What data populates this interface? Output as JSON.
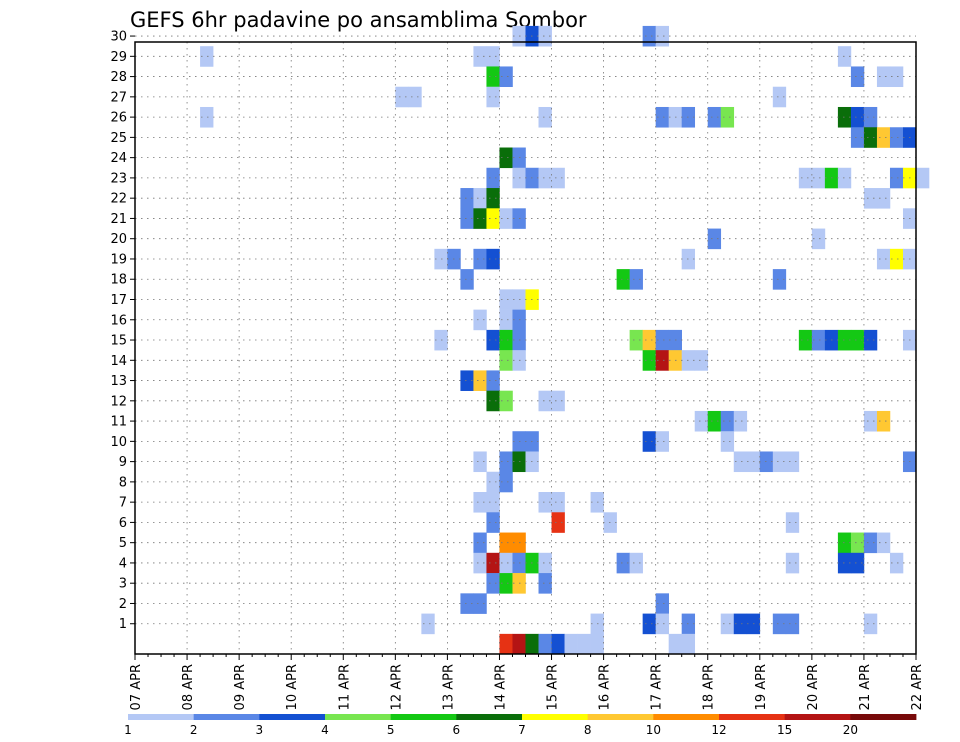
{
  "chart_data": {
    "type": "heatmap",
    "title": "GEFS 6hr padavine po ansamblima Sombor",
    "xlabel": "",
    "ylabel": "",
    "x_tick_labels": [
      "07 APR",
      "08 APR",
      "09 APR",
      "10 APR",
      "11 APR",
      "12 APR",
      "13 APR",
      "14 APR",
      "15 APR",
      "16 APR",
      "17 APR",
      "18 APR",
      "19 APR",
      "20 APR",
      "21 APR",
      "22 APR"
    ],
    "x_range_days": [
      0,
      15
    ],
    "y_range": [
      0,
      30
    ],
    "y_ticks": [
      1,
      2,
      3,
      4,
      5,
      6,
      7,
      8,
      9,
      10,
      11,
      12,
      13,
      14,
      15,
      16,
      17,
      18,
      19,
      20,
      21,
      22,
      23,
      24,
      25,
      26,
      27,
      28,
      29,
      30
    ],
    "grid": true,
    "legend_placement": "bottom",
    "legend": {
      "labels": [
        "1",
        "2",
        "3",
        "4",
        "5",
        "6",
        "7",
        "8",
        "10",
        "12",
        "15",
        "20"
      ],
      "colors": [
        "#b4c8f5",
        "#5a87e6",
        "#1450d2",
        "#78e650",
        "#14c814",
        "#0a6e0a",
        "#ffff00",
        "#ffc832",
        "#ff8c00",
        "#e63214",
        "#b41414",
        "#780a0a"
      ]
    },
    "colors_by_level": {
      "1": "#b4c8f5",
      "2": "#5a87e6",
      "3": "#1450d2",
      "4": "#78e650",
      "5": "#14c814",
      "6": "#0a6e0a",
      "7": "#ffff00",
      "8": "#ffc832",
      "9": "#ff8c00",
      "10": "#e63214",
      "11": "#b41414",
      "12": "#780a0a"
    },
    "cells_note": "each cell: [day offset from 07 APR in quarter-day steps (6h), ensemble member, color level]",
    "cells": [
      [
        7.25,
        30,
        1
      ],
      [
        7.5,
        30,
        1
      ],
      [
        7.5,
        30,
        3
      ],
      [
        7.75,
        30,
        1
      ],
      [
        7.75,
        30,
        1
      ],
      [
        9.75,
        30,
        2
      ],
      [
        10.0,
        30,
        1
      ],
      [
        1.25,
        29,
        1
      ],
      [
        6.5,
        29,
        1
      ],
      [
        6.75,
        29,
        1
      ],
      [
        13.5,
        29,
        1
      ],
      [
        6.75,
        28,
        5
      ],
      [
        7.0,
        28,
        2
      ],
      [
        13.75,
        28,
        2
      ],
      [
        14.25,
        28,
        1
      ],
      [
        14.5,
        28,
        1
      ],
      [
        5.0,
        27,
        1
      ],
      [
        5.25,
        27,
        1
      ],
      [
        6.75,
        27,
        1
      ],
      [
        12.25,
        27,
        1
      ],
      [
        1.25,
        26,
        1
      ],
      [
        7.75,
        26,
        1
      ],
      [
        10.0,
        26,
        2
      ],
      [
        10.25,
        26,
        1
      ],
      [
        10.5,
        26,
        2
      ],
      [
        11.0,
        26,
        2
      ],
      [
        11.25,
        26,
        4
      ],
      [
        13.5,
        26,
        6
      ],
      [
        13.75,
        26,
        3
      ],
      [
        14.0,
        26,
        2
      ],
      [
        13.75,
        25,
        2
      ],
      [
        14.0,
        25,
        6
      ],
      [
        14.25,
        25,
        8
      ],
      [
        14.5,
        25,
        2
      ],
      [
        14.75,
        25,
        3
      ],
      [
        7.0,
        24,
        6
      ],
      [
        7.25,
        24,
        2
      ],
      [
        6.75,
        23,
        2
      ],
      [
        7.25,
        23,
        1
      ],
      [
        7.5,
        23,
        2
      ],
      [
        7.75,
        23,
        1
      ],
      [
        8.0,
        23,
        1
      ],
      [
        12.75,
        23,
        1
      ],
      [
        13.0,
        23,
        1
      ],
      [
        13.25,
        23,
        5
      ],
      [
        13.5,
        23,
        1
      ],
      [
        14.5,
        23,
        2
      ],
      [
        14.75,
        23,
        7
      ],
      [
        15.0,
        23,
        1
      ],
      [
        6.25,
        22,
        2
      ],
      [
        6.5,
        22,
        1
      ],
      [
        6.75,
        22,
        6
      ],
      [
        14.0,
        22,
        1
      ],
      [
        14.25,
        22,
        1
      ],
      [
        6.25,
        21,
        2
      ],
      [
        6.5,
        21,
        6
      ],
      [
        6.75,
        21,
        7
      ],
      [
        7.0,
        21,
        1
      ],
      [
        7.25,
        21,
        2
      ],
      [
        14.75,
        21,
        1
      ],
      [
        11.0,
        20,
        2
      ],
      [
        13.0,
        20,
        1
      ],
      [
        5.75,
        19,
        1
      ],
      [
        6.0,
        19,
        2
      ],
      [
        6.5,
        19,
        2
      ],
      [
        6.75,
        19,
        3
      ],
      [
        10.5,
        19,
        1
      ],
      [
        14.25,
        19,
        1
      ],
      [
        14.5,
        19,
        7
      ],
      [
        14.75,
        19,
        1
      ],
      [
        6.25,
        18,
        2
      ],
      [
        9.25,
        18,
        5
      ],
      [
        9.5,
        18,
        2
      ],
      [
        12.25,
        18,
        2
      ],
      [
        7.0,
        17,
        1
      ],
      [
        7.25,
        17,
        1
      ],
      [
        7.5,
        17,
        7
      ],
      [
        6.5,
        16,
        1
      ],
      [
        7.0,
        16,
        1
      ],
      [
        7.25,
        16,
        2
      ],
      [
        5.75,
        15,
        1
      ],
      [
        6.75,
        15,
        3
      ],
      [
        7.0,
        15,
        5
      ],
      [
        7.25,
        15,
        2
      ],
      [
        9.5,
        15,
        4
      ],
      [
        9.75,
        15,
        8
      ],
      [
        10.0,
        15,
        2
      ],
      [
        10.25,
        15,
        2
      ],
      [
        12.75,
        15,
        5
      ],
      [
        13.0,
        15,
        2
      ],
      [
        13.25,
        15,
        3
      ],
      [
        13.5,
        15,
        5
      ],
      [
        13.75,
        15,
        5
      ],
      [
        14.0,
        15,
        3
      ],
      [
        14.75,
        15,
        1
      ],
      [
        7.0,
        14,
        4
      ],
      [
        7.25,
        14,
        1
      ],
      [
        9.75,
        14,
        5
      ],
      [
        10.0,
        14,
        11
      ],
      [
        10.25,
        14,
        8
      ],
      [
        10.5,
        14,
        1
      ],
      [
        10.75,
        14,
        1
      ],
      [
        6.25,
        13,
        3
      ],
      [
        6.5,
        13,
        8
      ],
      [
        6.75,
        13,
        2
      ],
      [
        6.75,
        12,
        6
      ],
      [
        7.0,
        12,
        4
      ],
      [
        7.75,
        12,
        1
      ],
      [
        8.0,
        12,
        1
      ],
      [
        10.75,
        11,
        1
      ],
      [
        11.0,
        11,
        5
      ],
      [
        11.25,
        11,
        2
      ],
      [
        11.5,
        11,
        1
      ],
      [
        14.0,
        11,
        1
      ],
      [
        14.25,
        11,
        8
      ],
      [
        7.25,
        10,
        2
      ],
      [
        7.5,
        10,
        2
      ],
      [
        9.75,
        10,
        3
      ],
      [
        10.0,
        10,
        1
      ],
      [
        11.25,
        10,
        1
      ],
      [
        6.5,
        9,
        1
      ],
      [
        7.0,
        9,
        2
      ],
      [
        7.25,
        9,
        6
      ],
      [
        7.5,
        9,
        1
      ],
      [
        11.5,
        9,
        1
      ],
      [
        11.75,
        9,
        1
      ],
      [
        12.0,
        9,
        2
      ],
      [
        12.25,
        9,
        1
      ],
      [
        12.5,
        9,
        1
      ],
      [
        14.75,
        9,
        2
      ],
      [
        6.75,
        8,
        1
      ],
      [
        7.0,
        8,
        2
      ],
      [
        6.5,
        7,
        1
      ],
      [
        6.75,
        7,
        1
      ],
      [
        7.75,
        7,
        1
      ],
      [
        8.0,
        7,
        1
      ],
      [
        8.75,
        7,
        1
      ],
      [
        6.75,
        6,
        2
      ],
      [
        8.0,
        6,
        10
      ],
      [
        9.0,
        6,
        1
      ],
      [
        12.5,
        6,
        1
      ],
      [
        6.5,
        5,
        2
      ],
      [
        7.0,
        5,
        9
      ],
      [
        7.25,
        5,
        9
      ],
      [
        13.5,
        5,
        5
      ],
      [
        13.75,
        5,
        4
      ],
      [
        14.0,
        5,
        2
      ],
      [
        14.25,
        5,
        1
      ],
      [
        6.5,
        4,
        1
      ],
      [
        6.75,
        4,
        11
      ],
      [
        7.0,
        4,
        1
      ],
      [
        7.25,
        4,
        2
      ],
      [
        7.5,
        4,
        5
      ],
      [
        7.75,
        4,
        1
      ],
      [
        9.25,
        4,
        2
      ],
      [
        9.5,
        4,
        1
      ],
      [
        12.5,
        4,
        1
      ],
      [
        13.5,
        4,
        3
      ],
      [
        13.75,
        4,
        3
      ],
      [
        14.5,
        4,
        1
      ],
      [
        6.75,
        3,
        2
      ],
      [
        7.0,
        3,
        5
      ],
      [
        7.25,
        3,
        8
      ],
      [
        7.75,
        3,
        2
      ],
      [
        6.25,
        2,
        2
      ],
      [
        6.5,
        2,
        2
      ],
      [
        10.0,
        2,
        2
      ],
      [
        5.5,
        1,
        1
      ],
      [
        8.75,
        1,
        1
      ],
      [
        9.75,
        1,
        3
      ],
      [
        10.0,
        1,
        1
      ],
      [
        10.5,
        1,
        2
      ],
      [
        11.25,
        1,
        1
      ],
      [
        11.5,
        1,
        3
      ],
      [
        11.75,
        1,
        3
      ],
      [
        12.25,
        1,
        2
      ],
      [
        12.5,
        1,
        2
      ],
      [
        14.0,
        1,
        1
      ],
      [
        7.0,
        0,
        10
      ],
      [
        7.25,
        0,
        11
      ],
      [
        7.5,
        0,
        6
      ],
      [
        7.75,
        0,
        2
      ],
      [
        8.0,
        0,
        3
      ],
      [
        8.25,
        0,
        1
      ],
      [
        8.5,
        0,
        1
      ],
      [
        8.75,
        0,
        1
      ],
      [
        10.25,
        0,
        1
      ],
      [
        10.5,
        0,
        1
      ]
    ]
  }
}
